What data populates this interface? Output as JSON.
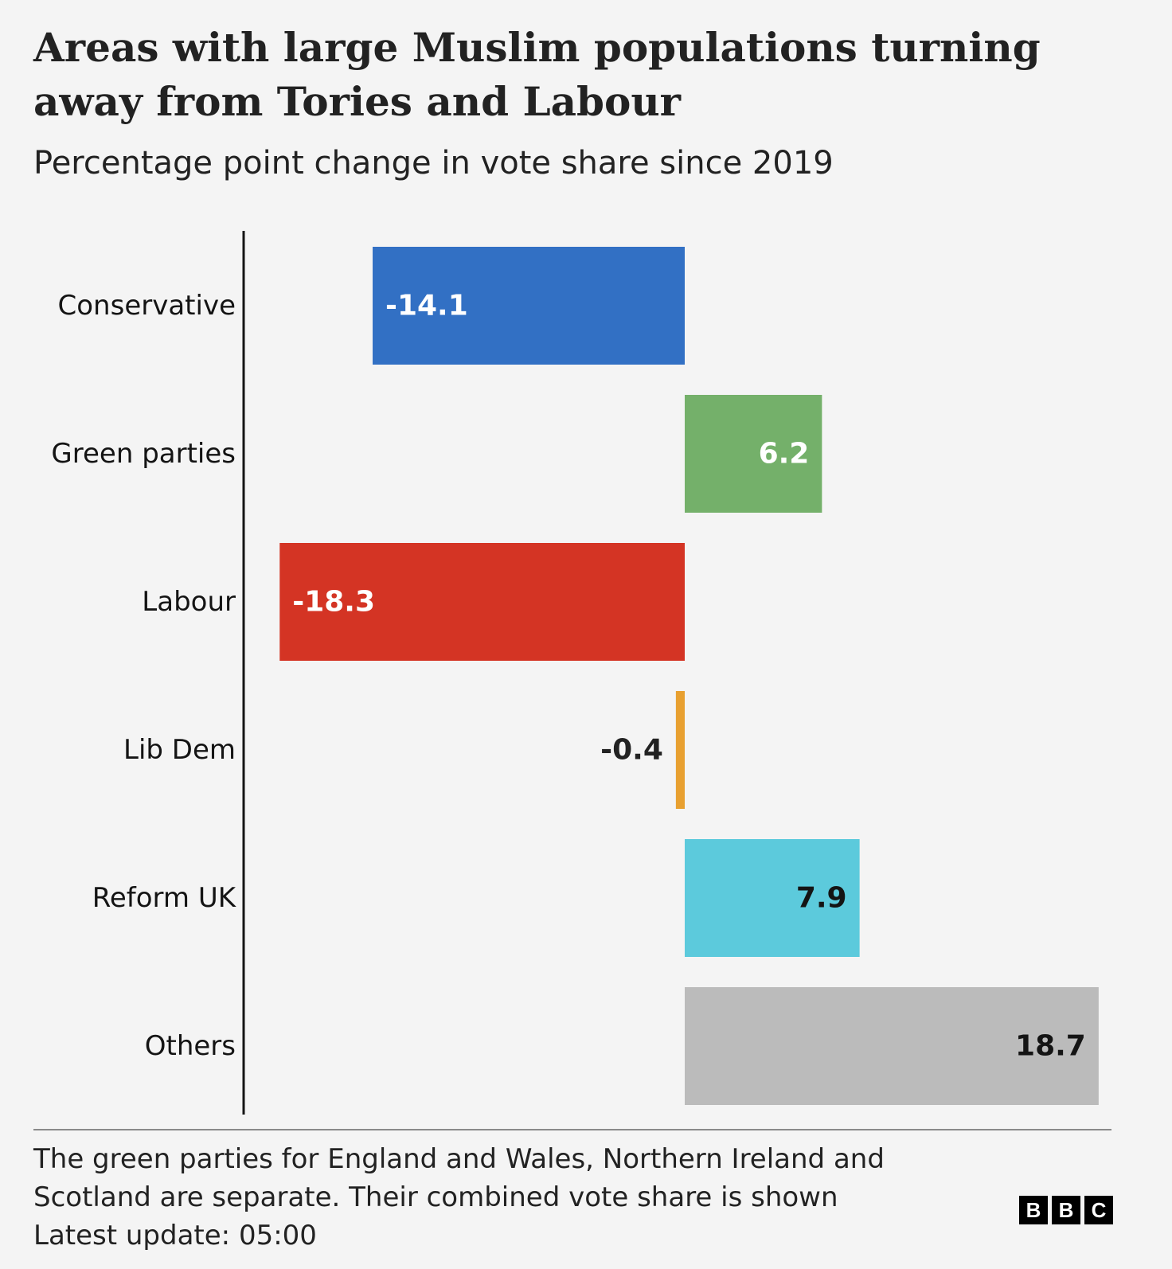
{
  "header": {
    "title": "Areas with large Muslim populations turning away from Tories and Labour",
    "subtitle": "Percentage point change in vote share since 2019"
  },
  "chart_data": {
    "type": "bar",
    "orientation": "horizontal",
    "categories": [
      "Conservative",
      "Green parties",
      "Labour",
      "Lib Dem",
      "Reform UK",
      "Others"
    ],
    "values": [
      -14.1,
      6.2,
      -18.3,
      -0.4,
      7.9,
      18.7
    ],
    "value_labels": [
      "-14.1",
      "6.2",
      "-18.3",
      "-0.4",
      "7.9",
      "18.7"
    ],
    "colors": [
      "#3270c4",
      "#74b06a",
      "#d43424",
      "#e8a030",
      "#5ccadc",
      "#bbbbbb"
    ],
    "label_colors": [
      "#ffffff",
      "#ffffff",
      "#ffffff",
      "#222222",
      "#141414",
      "#141414"
    ],
    "xlim": [
      -20,
      20
    ],
    "grid": false,
    "title": "Areas with large Muslim populations turning away from Tories and Labour",
    "subtitle": "Percentage point change in vote share since 2019"
  },
  "footer": {
    "note_line1": "The green parties for England and Wales, Northern Ireland and",
    "note_line2": "Scotland are separate. Their combined vote share is shown",
    "updated": "Latest update: 05:00",
    "logo_letters": [
      "B",
      "B",
      "C"
    ]
  }
}
